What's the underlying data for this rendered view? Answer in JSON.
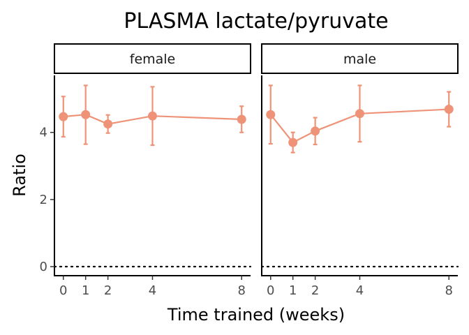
{
  "chart_data": {
    "type": "line",
    "title": "PLASMA lactate/pyruvate",
    "xlabel": "Time trained (weeks)",
    "ylabel": "Ratio",
    "color": "#EE9377",
    "reference_line": {
      "y": 0,
      "style": "dotted"
    },
    "xlim": [
      -0.4,
      8.4
    ],
    "ylim": [
      -0.27,
      5.7
    ],
    "x_ticks": [
      0,
      1,
      2,
      4,
      8
    ],
    "y_ticks": [
      0,
      2,
      4
    ],
    "grid": false,
    "legend": "none",
    "panels": [
      {
        "label": "female",
        "x": [
          0,
          1,
          2,
          4,
          8
        ],
        "y": [
          4.47,
          4.53,
          4.25,
          4.49,
          4.39
        ],
        "error_low": [
          3.87,
          3.65,
          3.98,
          3.62,
          4.0
        ],
        "error_high": [
          5.07,
          5.4,
          4.52,
          5.36,
          4.78
        ]
      },
      {
        "label": "male",
        "x": [
          0,
          1,
          2,
          4,
          8
        ],
        "y": [
          4.53,
          3.7,
          4.04,
          4.56,
          4.69
        ],
        "error_low": [
          3.66,
          3.4,
          3.64,
          3.72,
          4.17
        ],
        "error_high": [
          5.4,
          4.0,
          4.44,
          5.4,
          5.21
        ]
      }
    ]
  }
}
